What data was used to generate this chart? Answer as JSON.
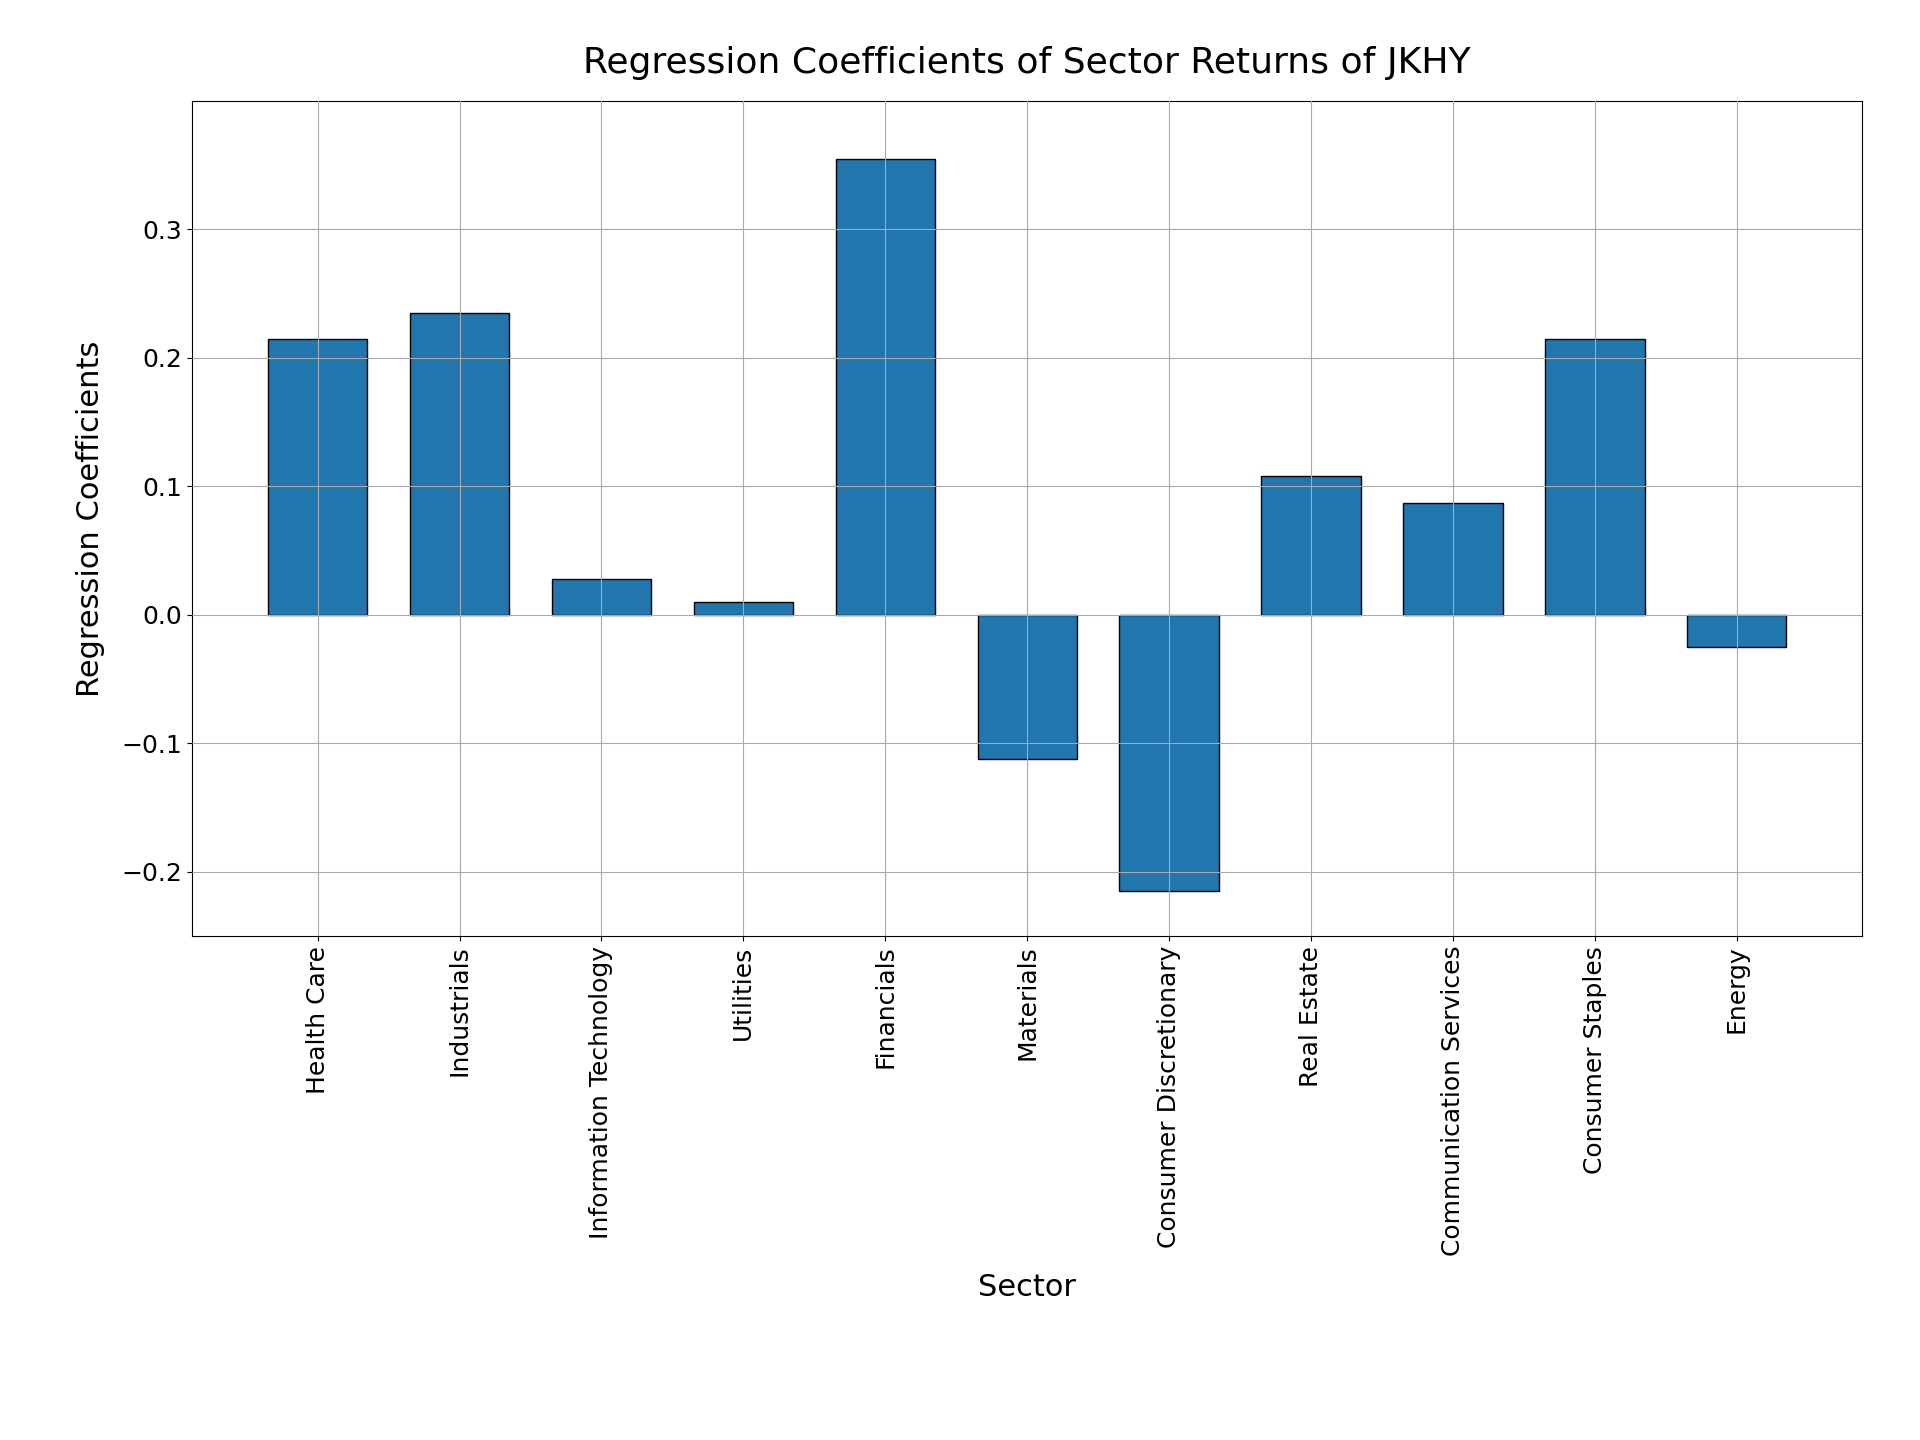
{
  "title": "Regression Coefficients of Sector Returns of JKHY",
  "xlabel": "Sector",
  "ylabel": "Regression Coefficients",
  "categories": [
    "Health Care",
    "Industrials",
    "Information Technology",
    "Utilities",
    "Financials",
    "Materials",
    "Consumer Discretionary",
    "Real Estate",
    "Communication Services",
    "Consumer Staples",
    "Energy"
  ],
  "values": [
    0.215,
    0.235,
    0.028,
    0.01,
    0.355,
    -0.112,
    -0.215,
    0.108,
    0.087,
    0.215,
    -0.025
  ],
  "bar_color": "#2176AE",
  "bar_edgecolor": "black",
  "bar_linewidth": 1.0,
  "title_fontsize": 26,
  "label_fontsize": 22,
  "tick_fontsize": 18,
  "ylim": [
    -0.25,
    0.4
  ],
  "yticks": [
    -0.2,
    -0.1,
    0.0,
    0.1,
    0.2,
    0.3
  ],
  "grid": true,
  "grid_color": "#aaaaaa",
  "background_color": "#ffffff",
  "figsize": [
    19.2,
    14.4
  ],
  "dpi": 100
}
